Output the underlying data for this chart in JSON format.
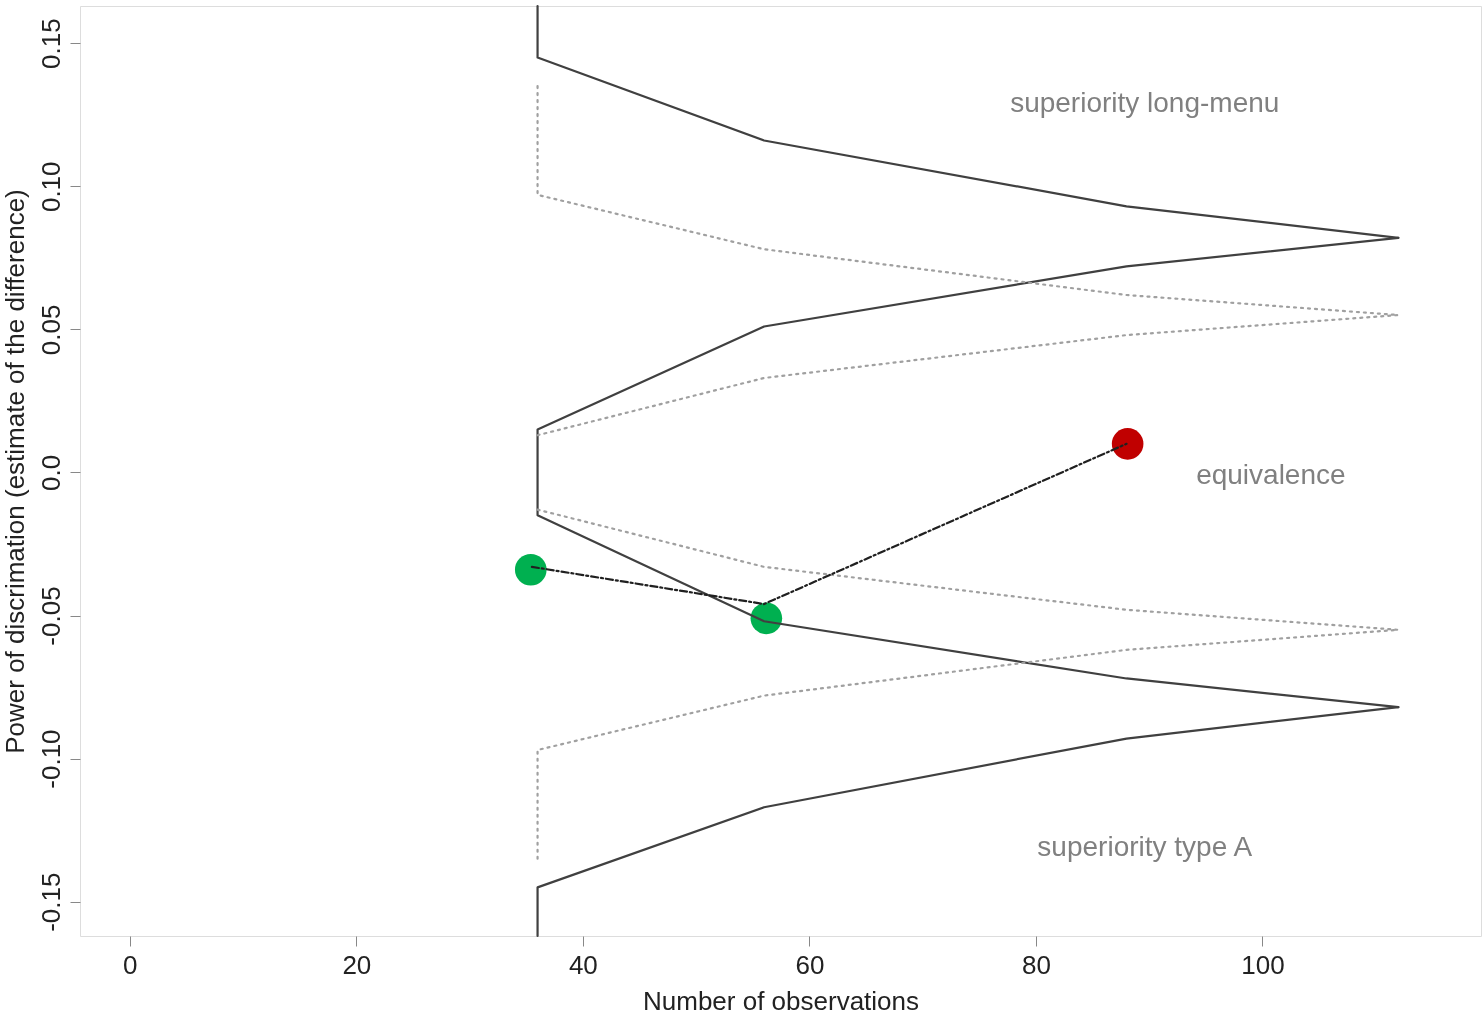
{
  "chart_data": {
    "type": "line",
    "xlabel": "Number of observations",
    "ylabel": "Power of discrimation (estimate of the difference)",
    "xlim": [
      -4.4,
      119.3
    ],
    "ylim": [
      -0.162,
      0.163
    ],
    "xticks": [
      0,
      20,
      40,
      60,
      80,
      100
    ],
    "yticks": [
      {
        "value": -0.15,
        "label": "-0.15"
      },
      {
        "value": -0.1,
        "label": "-0.10"
      },
      {
        "value": -0.05,
        "label": "-0.05"
      },
      {
        "value": 0,
        "label": "0.0"
      },
      {
        "value": 0.05,
        "label": "0.05"
      },
      {
        "value": 0.1,
        "label": "0.10"
      },
      {
        "value": 0.15,
        "label": "0.15"
      }
    ],
    "grid": false,
    "series": [
      {
        "type": "scatter",
        "colors": [
          "#00b050",
          "#00b050",
          "#c00000"
        ],
        "marker": "circle",
        "x": [
          35.4,
          56.2,
          88.1
        ],
        "values": [
          -0.034,
          -0.051,
          0.01
        ]
      },
      {
        "color": "#404040",
        "line_style": "solid",
        "marker": "none",
        "x": [
          36,
          36,
          56,
          88,
          112
        ],
        "values": [
          0.163,
          0.145,
          0.116,
          0.093,
          0.082
        ]
      },
      {
        "color": "#404040",
        "line_style": "solid",
        "marker": "none",
        "x": [
          112,
          88,
          56,
          36,
          36,
          56,
          88,
          112
        ],
        "values": [
          0.082,
          0.072,
          0.051,
          0.015,
          -0.015,
          -0.052,
          -0.072,
          -0.082
        ]
      },
      {
        "color": "#404040",
        "line_style": "solid",
        "marker": "none",
        "x": [
          112,
          88,
          56,
          36,
          36
        ],
        "values": [
          -0.082,
          -0.093,
          -0.117,
          -0.145,
          -0.162
        ]
      },
      {
        "color": "#a0a0a0",
        "line_style": "dotted",
        "marker": "none",
        "x": [
          36,
          36,
          56,
          88,
          112
        ],
        "values": [
          0.135,
          0.097,
          0.078,
          0.062,
          0.055
        ]
      },
      {
        "color": "#a0a0a0",
        "line_style": "dotted",
        "marker": "none",
        "x": [
          36,
          56,
          88,
          112
        ],
        "values": [
          0.013,
          0.033,
          0.048,
          0.055
        ]
      },
      {
        "color": "#a0a0a0",
        "line_style": "dotted",
        "marker": "none",
        "x": [
          36,
          56,
          88,
          112
        ],
        "values": [
          -0.013,
          -0.033,
          -0.048,
          -0.055
        ]
      },
      {
        "color": "#a0a0a0",
        "line_style": "dotted",
        "marker": "none",
        "x": [
          36,
          36,
          56,
          88,
          112
        ],
        "values": [
          -0.135,
          -0.097,
          -0.078,
          -0.062,
          -0.055
        ]
      },
      {
        "color": "#202020",
        "line_style": "dashed",
        "marker": "none",
        "x": [
          35.5,
          56,
          88
        ],
        "values": [
          -0.033,
          -0.046,
          0.01
        ]
      }
    ],
    "annotations": [
      "superiority long-menu",
      "equivalence",
      "superiority type A"
    ]
  }
}
